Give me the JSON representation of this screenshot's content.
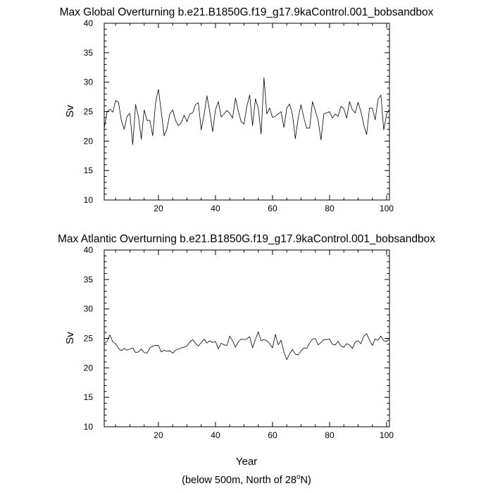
{
  "chart_data": [
    {
      "type": "line",
      "title": "Max Global Overturning b.e21.B1850G.f19_g17.9kaControl.001_bobsandbox",
      "xlabel": "",
      "ylabel": "Sv",
      "xlim": [
        1,
        101
      ],
      "ylim": [
        10,
        40
      ],
      "xticks": [
        20,
        40,
        60,
        80,
        100
      ],
      "yticks": [
        10,
        15,
        20,
        25,
        30,
        35,
        40
      ],
      "grid": false,
      "series": [
        {
          "x": [
            1,
            2,
            3,
            4,
            5,
            6,
            7,
            8,
            9,
            10,
            11,
            12,
            13,
            14,
            15,
            16,
            17,
            18,
            19,
            20,
            21,
            22,
            23,
            24,
            25,
            26,
            27,
            28,
            29,
            30,
            31,
            32,
            33,
            34,
            35,
            36,
            37,
            38,
            39,
            40,
            41,
            42,
            43,
            44,
            45,
            46,
            47,
            48,
            49,
            50,
            51,
            52,
            53,
            54,
            55,
            56,
            57,
            58,
            59,
            60,
            61,
            62,
            63,
            64,
            65,
            66,
            67,
            68,
            69,
            70,
            71,
            72,
            73,
            74,
            75,
            76,
            77,
            78,
            79,
            80,
            81,
            82,
            83,
            84,
            85,
            86,
            87,
            88,
            89,
            90,
            91,
            92,
            93,
            94,
            95,
            96,
            97,
            98,
            99,
            100,
            101
          ],
          "values": [
            22.2,
            25.0,
            25.4,
            24.9,
            26.9,
            26.6,
            23.5,
            22.0,
            24.2,
            24.7,
            19.4,
            26.2,
            24.1,
            20.3,
            25.3,
            23.5,
            23.5,
            20.9,
            26.5,
            28.8,
            25.0,
            20.9,
            22.1,
            24.6,
            25.3,
            23.5,
            22.6,
            23.1,
            24.4,
            23.3,
            24.6,
            24.8,
            26.2,
            26.5,
            21.9,
            24.5,
            27.7,
            25.0,
            21.6,
            25.3,
            26.7,
            24.1,
            24.6,
            25.2,
            24.7,
            23.9,
            27.3,
            25.1,
            23.3,
            22.9,
            25.9,
            27.8,
            22.6,
            27.2,
            25.6,
            21.2,
            30.8,
            24.6,
            25.6,
            24.0,
            24.2,
            24.6,
            25.0,
            22.3,
            25.6,
            26.3,
            24.5,
            20.4,
            23.9,
            26.2,
            23.9,
            22.2,
            22.2,
            26.7,
            25.2,
            23.5,
            20.2,
            24.6,
            24.8,
            25.0,
            23.9,
            24.6,
            24.2,
            25.9,
            25.5,
            23.9,
            26.7,
            25.3,
            24.8,
            26.6,
            25.0,
            22.7,
            21.1,
            25.6,
            25.6,
            23.6,
            27.1,
            27.8,
            21.9,
            24.6,
            25.4
          ]
        }
      ]
    },
    {
      "type": "line",
      "title": "Max Atlantic Overturning b.e21.B1850G.f19_g17.9kaControl.001_bobsandbox",
      "xlabel": "Year",
      "ylabel": "Sv",
      "xlim": [
        1,
        101
      ],
      "ylim": [
        10,
        40
      ],
      "xticks": [
        20,
        40,
        60,
        80,
        100
      ],
      "yticks": [
        10,
        15,
        20,
        25,
        30,
        35,
        40
      ],
      "grid": false,
      "series": [
        {
          "x": [
            1,
            2,
            3,
            4,
            5,
            6,
            7,
            8,
            9,
            10,
            11,
            12,
            13,
            14,
            15,
            16,
            17,
            18,
            19,
            20,
            21,
            22,
            23,
            24,
            25,
            26,
            27,
            28,
            29,
            30,
            31,
            32,
            33,
            34,
            35,
            36,
            37,
            38,
            39,
            40,
            41,
            42,
            43,
            44,
            45,
            46,
            47,
            48,
            49,
            50,
            51,
            52,
            53,
            54,
            55,
            56,
            57,
            58,
            59,
            60,
            61,
            62,
            63,
            64,
            65,
            66,
            67,
            68,
            69,
            70,
            71,
            72,
            73,
            74,
            75,
            76,
            77,
            78,
            79,
            80,
            81,
            82,
            83,
            84,
            85,
            86,
            87,
            88,
            89,
            90,
            91,
            92,
            93,
            94,
            95,
            96,
            97,
            98,
            99,
            100,
            101
          ],
          "values": [
            24.2,
            24.5,
            25.6,
            24.4,
            24.1,
            23.3,
            22.9,
            23.3,
            23.0,
            23.2,
            23.4,
            22.6,
            22.7,
            23.2,
            22.6,
            22.5,
            23.4,
            23.7,
            23.8,
            23.8,
            22.7,
            23.0,
            22.8,
            22.9,
            22.5,
            23.0,
            23.2,
            23.4,
            23.5,
            23.7,
            24.4,
            24.8,
            24.2,
            23.7,
            24.3,
            24.9,
            24.2,
            24.6,
            24.3,
            24.5,
            23.2,
            24.2,
            23.9,
            23.8,
            25.4,
            24.6,
            23.5,
            24.4,
            24.9,
            24.8,
            24.9,
            25.3,
            23.4,
            24.8,
            26.1,
            24.6,
            24.8,
            24.6,
            24.1,
            23.4,
            25.7,
            23.9,
            24.7,
            22.7,
            21.4,
            22.4,
            23.1,
            22.3,
            22.2,
            22.9,
            23.4,
            23.3,
            24.2,
            24.9,
            25.0,
            23.9,
            24.3,
            24.8,
            24.8,
            24.9,
            24.0,
            23.9,
            24.5,
            23.7,
            23.5,
            24.1,
            23.9,
            23.3,
            24.4,
            24.6,
            24.1,
            25.4,
            25.8,
            24.7,
            23.8,
            24.9,
            24.7,
            25.4,
            24.6,
            24.5,
            24.9
          ]
        }
      ]
    }
  ],
  "footnote": {
    "text_before": "(below 500m, North of 28",
    "superscript": "o",
    "text_after": "N)"
  }
}
